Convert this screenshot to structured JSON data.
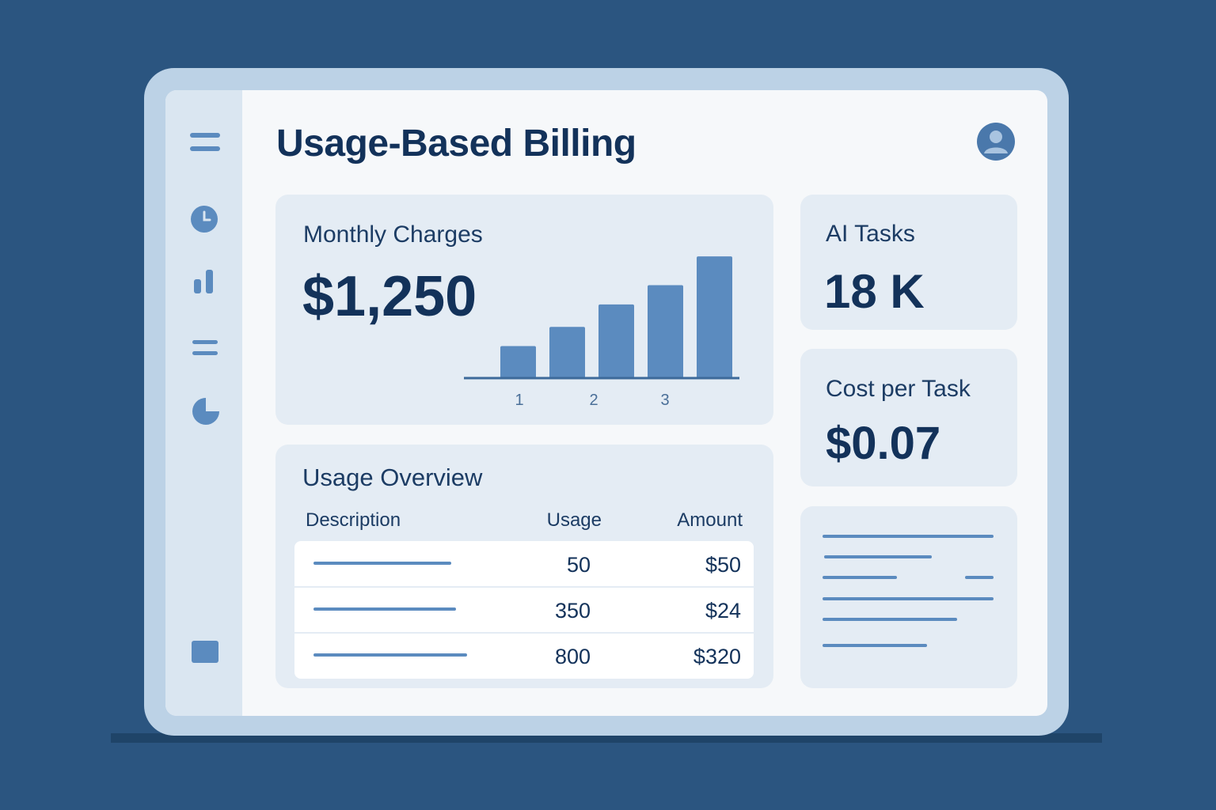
{
  "header": {
    "title": "Usage-Based Billing",
    "avatar_icon": "user-avatar-icon"
  },
  "sidebar": {
    "items": [
      {
        "icon": "menu-icon"
      },
      {
        "icon": "clock-icon"
      },
      {
        "icon": "bar-chart-icon"
      },
      {
        "icon": "list-icon"
      },
      {
        "icon": "pie-chart-icon"
      },
      {
        "icon": "square-icon"
      }
    ]
  },
  "monthly": {
    "label": "Monthly Charges",
    "value": "$1,250"
  },
  "chart_data": {
    "type": "bar",
    "categories": [
      "",
      "",
      "",
      "",
      ""
    ],
    "tick_labels": [
      "1",
      "2",
      "3"
    ],
    "values": [
      1.0,
      1.6,
      2.3,
      2.9,
      3.8
    ],
    "ylim": [
      0,
      4
    ],
    "bar_color": "#5b8bbf",
    "grid": false
  },
  "ai_tasks": {
    "label": "AI Tasks",
    "value": "18 K"
  },
  "cost_per_task": {
    "label": "Cost per Task",
    "value": "$0.07"
  },
  "usage": {
    "title": "Usage Overview",
    "columns": [
      "Description",
      "Usage",
      "Amount"
    ],
    "rows": [
      {
        "usage": "50",
        "amount": "$50"
      },
      {
        "usage": "350",
        "amount": "$24"
      },
      {
        "usage": "800",
        "amount": "$320"
      }
    ]
  },
  "colors": {
    "background": "#2b5580",
    "accent": "#5b8bbf",
    "text_dark": "#13325a",
    "card": "#e4ecf4"
  }
}
